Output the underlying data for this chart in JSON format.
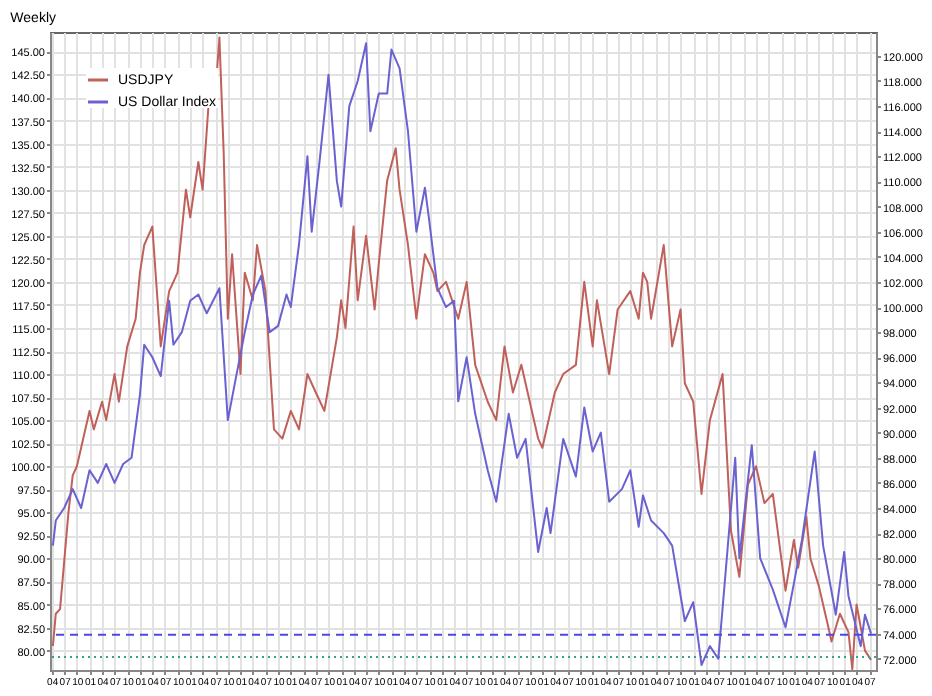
{
  "chart_data": {
    "type": "line",
    "title": "Weekly",
    "legend": "top left",
    "grid": true,
    "xlim": [
      "1995-03-20",
      "2011-08-20"
    ],
    "xticks": [
      {
        "value": "1995-04-01",
        "label": "04"
      },
      {
        "value": "1995-07-01",
        "label": "07"
      },
      {
        "value": "1995-10-01",
        "label": "10"
      },
      {
        "value": "1996-01-01",
        "label": "01"
      },
      {
        "value": "1996-04-01",
        "label": "04"
      },
      {
        "value": "1996-07-01",
        "label": "07"
      },
      {
        "value": "1996-10-01",
        "label": "10"
      },
      {
        "value": "1997-01-01",
        "label": "01"
      },
      {
        "value": "1997-04-01",
        "label": "04"
      },
      {
        "value": "1997-07-01",
        "label": "07"
      },
      {
        "value": "1997-10-01",
        "label": "10"
      },
      {
        "value": "1998-01-01",
        "label": "01"
      },
      {
        "value": "1998-04-01",
        "label": "04"
      },
      {
        "value": "1998-07-01",
        "label": "07"
      },
      {
        "value": "1998-10-01",
        "label": "10"
      },
      {
        "value": "1999-01-01",
        "label": "01"
      },
      {
        "value": "1999-04-01",
        "label": "04"
      },
      {
        "value": "1999-07-01",
        "label": "07"
      },
      {
        "value": "1999-10-01",
        "label": "10"
      },
      {
        "value": "2000-01-01",
        "label": "01"
      },
      {
        "value": "2000-04-01",
        "label": "04"
      },
      {
        "value": "2000-07-01",
        "label": "07"
      },
      {
        "value": "2000-10-01",
        "label": "10"
      },
      {
        "value": "2001-01-01",
        "label": "01"
      },
      {
        "value": "2001-04-01",
        "label": "04"
      },
      {
        "value": "2001-07-01",
        "label": "07"
      },
      {
        "value": "2001-10-01",
        "label": "10"
      },
      {
        "value": "2002-01-01",
        "label": "01"
      },
      {
        "value": "2002-04-01",
        "label": "04"
      },
      {
        "value": "2002-07-01",
        "label": "07"
      },
      {
        "value": "2002-10-01",
        "label": "10"
      },
      {
        "value": "2003-01-01",
        "label": "01"
      },
      {
        "value": "2003-04-01",
        "label": "04"
      },
      {
        "value": "2003-07-01",
        "label": "07"
      },
      {
        "value": "2003-10-01",
        "label": "10"
      },
      {
        "value": "2004-01-01",
        "label": "01"
      },
      {
        "value": "2004-04-01",
        "label": "04"
      },
      {
        "value": "2004-07-01",
        "label": "07"
      },
      {
        "value": "2004-10-01",
        "label": "10"
      },
      {
        "value": "2005-01-01",
        "label": "01"
      },
      {
        "value": "2005-04-01",
        "label": "04"
      },
      {
        "value": "2005-07-01",
        "label": "07"
      },
      {
        "value": "2005-10-01",
        "label": "10"
      },
      {
        "value": "2006-01-01",
        "label": "01"
      },
      {
        "value": "2006-04-01",
        "label": "04"
      },
      {
        "value": "2006-07-01",
        "label": "07"
      },
      {
        "value": "2006-10-01",
        "label": "10"
      },
      {
        "value": "2007-01-01",
        "label": "01"
      },
      {
        "value": "2007-04-01",
        "label": "04"
      },
      {
        "value": "2007-07-01",
        "label": "07"
      },
      {
        "value": "2007-10-01",
        "label": "10"
      },
      {
        "value": "2008-01-01",
        "label": "01"
      },
      {
        "value": "2008-04-01",
        "label": "04"
      },
      {
        "value": "2008-07-01",
        "label": "07"
      },
      {
        "value": "2008-10-01",
        "label": "10"
      },
      {
        "value": "2009-01-01",
        "label": "01"
      },
      {
        "value": "2009-04-01",
        "label": "04"
      },
      {
        "value": "2009-07-01",
        "label": "07"
      },
      {
        "value": "2009-10-01",
        "label": "10"
      },
      {
        "value": "2010-01-01",
        "label": "01"
      },
      {
        "value": "2010-04-01",
        "label": "04"
      },
      {
        "value": "2010-07-01",
        "label": "07"
      },
      {
        "value": "2010-10-01",
        "label": "10"
      },
      {
        "value": "2011-01-01",
        "label": "01"
      },
      {
        "value": "2011-04-01",
        "label": "04"
      },
      {
        "value": "2011-07-01",
        "label": "07"
      }
    ],
    "ylim": [
      77.9,
      147.1
    ],
    "yticks": [
      {
        "value": 80,
        "label": "80.00"
      },
      {
        "value": 82.5,
        "label": "82.50"
      },
      {
        "value": 85,
        "label": "85.00"
      },
      {
        "value": 87.5,
        "label": "87.50"
      },
      {
        "value": 90,
        "label": "90.00"
      },
      {
        "value": 92.5,
        "label": "92.50"
      },
      {
        "value": 95,
        "label": "95.00"
      },
      {
        "value": 97.5,
        "label": "97.50"
      },
      {
        "value": 100,
        "label": "100.00"
      },
      {
        "value": 102.5,
        "label": "102.50"
      },
      {
        "value": 105,
        "label": "105.00"
      },
      {
        "value": 107.5,
        "label": "107.50"
      },
      {
        "value": 110,
        "label": "110.00"
      },
      {
        "value": 112.5,
        "label": "112.50"
      },
      {
        "value": 115,
        "label": "115.00"
      },
      {
        "value": 117.5,
        "label": "117.50"
      },
      {
        "value": 120,
        "label": "120.00"
      },
      {
        "value": 122.5,
        "label": "122.50"
      },
      {
        "value": 125,
        "label": "125.00"
      },
      {
        "value": 127.5,
        "label": "127.50"
      },
      {
        "value": 130,
        "label": "130.00"
      },
      {
        "value": 132.5,
        "label": "132.50"
      },
      {
        "value": 135,
        "label": "135.00"
      },
      {
        "value": 137.5,
        "label": "137.50"
      },
      {
        "value": 140,
        "label": "140.00"
      },
      {
        "value": 142.5,
        "label": "142.50"
      },
      {
        "value": 145,
        "label": "145.00"
      }
    ],
    "y2lim": [
      71.1,
      121.9
    ],
    "y2ticks": [
      {
        "value": 72,
        "label": "72.000"
      },
      {
        "value": 74,
        "label": "74.000"
      },
      {
        "value": 76,
        "label": "76.000"
      },
      {
        "value": 78,
        "label": "78.000"
      },
      {
        "value": 80,
        "label": "80.000"
      },
      {
        "value": 82,
        "label": "82.000"
      },
      {
        "value": 84,
        "label": "84.000"
      },
      {
        "value": 86,
        "label": "86.000"
      },
      {
        "value": 88,
        "label": "88.000"
      },
      {
        "value": 90,
        "label": "90.000"
      },
      {
        "value": 92,
        "label": "92.000"
      },
      {
        "value": 94,
        "label": "94.000"
      },
      {
        "value": 96,
        "label": "96.000"
      },
      {
        "value": 98,
        "label": "98.000"
      },
      {
        "value": 100,
        "label": "100.000"
      },
      {
        "value": 102,
        "label": "102.000"
      },
      {
        "value": 104,
        "label": "104.000"
      },
      {
        "value": 106,
        "label": "106.000"
      },
      {
        "value": 108,
        "label": "108.000"
      },
      {
        "value": 110,
        "label": "110.000"
      },
      {
        "value": 112,
        "label": "112.000"
      },
      {
        "value": 114,
        "label": "114.000"
      },
      {
        "value": 116,
        "label": "116.000"
      },
      {
        "value": 118,
        "label": "118.000"
      },
      {
        "value": 120,
        "label": "120.000"
      }
    ],
    "ref_lines": [
      {
        "axis": "y2",
        "value": 73.9,
        "color": "#4a4ae0",
        "line_style": "dashed"
      },
      {
        "axis": "y",
        "value": 79.3,
        "color": "#3aa08a",
        "line_style": "dotted"
      }
    ],
    "series": [
      {
        "name": "USDJPY",
        "color": "#c0605a",
        "x": [
          "1995-04-10",
          "1995-05",
          "1995-06",
          "1995-08",
          "1995-09",
          "1995-10",
          "1995-11",
          "1996-01",
          "1996-02",
          "1996-04",
          "1996-05",
          "1996-07",
          "1996-08",
          "1996-10",
          "1996-12",
          "1997-01",
          "1997-02",
          "1997-04",
          "1997-06",
          "1997-08",
          "1997-09",
          "1997-10",
          "1997-12",
          "1998-01",
          "1998-03",
          "1998-04",
          "1998-06",
          "1998-07",
          "1998-08",
          "1998-09",
          "1998-10",
          "1998-11",
          "1999-01",
          "1999-02",
          "1999-04",
          "1999-05",
          "1999-07",
          "1999-09",
          "1999-11",
          "2000-01",
          "2000-03",
          "2000-05",
          "2000-07",
          "2000-09",
          "2000-12",
          "2001-01",
          "2001-02",
          "2001-04",
          "2001-05",
          "2001-07",
          "2001-09",
          "2001-10",
          "2001-12",
          "2002-02",
          "2002-03",
          "2002-05",
          "2002-07",
          "2002-09",
          "2002-11",
          "2002-12",
          "2003-02",
          "2003-05",
          "2003-07",
          "2003-09",
          "2003-12",
          "2004-02",
          "2004-04",
          "2004-06",
          "2004-08",
          "2004-12",
          "2005-01",
          "2005-04",
          "2005-06",
          "2005-09",
          "2005-11",
          "2006-01",
          "2006-02",
          "2006-05",
          "2006-07",
          "2006-10",
          "2006-12",
          "2007-01",
          "2007-02",
          "2007-03",
          "2007-06",
          "2007-08",
          "2007-10",
          "2007-11",
          "2008-01",
          "2008-03",
          "2008-05",
          "2008-08",
          "2008-10",
          "2008-12",
          "2009-02",
          "2009-04",
          "2009-06",
          "2009-08",
          "2009-11",
          "2010-01",
          "2010-02",
          "2010-04",
          "2010-05",
          "2010-07",
          "2010-09",
          "2010-10",
          "2010-12",
          "2011-02",
          "2011-03",
          "2011-04",
          "2011-06",
          "2011-07-15"
        ],
        "values": [
          80.5,
          84,
          84.5,
          95,
          99,
          100,
          102,
          106,
          104,
          107,
          105,
          110,
          107,
          113,
          116,
          121,
          124,
          126,
          113,
          119,
          120,
          121,
          130,
          127,
          133,
          130,
          143,
          140,
          146.5,
          134,
          116,
          123,
          110,
          121,
          118,
          124,
          119,
          104,
          103,
          106,
          104,
          110,
          108,
          106,
          114,
          118,
          115,
          126,
          118,
          125,
          117,
          122,
          131,
          134.5,
          130,
          124,
          116,
          123,
          121,
          119,
          120,
          116,
          120,
          111,
          107,
          105,
          113,
          108,
          111,
          103,
          102,
          108,
          110,
          111,
          120,
          113,
          118,
          110,
          117,
          119,
          116,
          121,
          120,
          116,
          124,
          113,
          117,
          109,
          107,
          97,
          105,
          110,
          93,
          88,
          98,
          100,
          96,
          97,
          86.5,
          92,
          89,
          94.5,
          90,
          87,
          83,
          81,
          84,
          82,
          78,
          85,
          80,
          79
        ]
      },
      {
        "name": "US Dollar Index",
        "color": "#6a62d0",
        "axis": "y2",
        "x": [
          "1995-04-10",
          "1995-05",
          "1995-07",
          "1995-09",
          "1995-11",
          "1996-01",
          "1996-03",
          "1996-05",
          "1996-07",
          "1996-09",
          "1996-11",
          "1997-01",
          "1997-02",
          "1997-04",
          "1997-06",
          "1997-08",
          "1997-09",
          "1997-11",
          "1998-01",
          "1998-03",
          "1998-05",
          "1998-08",
          "1998-10",
          "1998-12",
          "1999-02",
          "1999-04",
          "1999-06",
          "1999-08",
          "1999-10",
          "1999-12",
          "2000-01",
          "2000-03",
          "2000-05",
          "2000-06",
          "2000-08",
          "2000-10",
          "2000-12",
          "2001-01",
          "2001-03",
          "2001-05",
          "2001-07",
          "2001-08",
          "2001-10",
          "2001-12",
          "2002-01",
          "2002-03",
          "2002-05",
          "2002-07",
          "2002-09",
          "2002-10",
          "2002-12",
          "2003-02",
          "2003-04",
          "2003-05",
          "2003-07",
          "2003-09",
          "2003-12",
          "2004-02",
          "2004-05",
          "2004-07",
          "2004-09",
          "2004-12",
          "2005-02",
          "2005-03",
          "2005-06",
          "2005-09",
          "2005-11",
          "2006-01",
          "2006-03",
          "2006-05",
          "2006-08",
          "2006-10",
          "2006-12",
          "2007-01",
          "2007-03",
          "2007-06",
          "2007-08",
          "2007-11",
          "2008-01",
          "2008-03",
          "2008-05",
          "2008-07",
          "2008-08",
          "2008-11",
          "2008-12",
          "2009-03",
          "2009-05",
          "2009-08",
          "2009-11",
          "2010-01",
          "2010-03",
          "2010-06",
          "2010-08",
          "2010-11",
          "2011-01",
          "2011-02",
          "2011-05",
          "2011-06",
          "2011-07-15"
        ],
        "values": [
          81,
          83,
          84,
          85.5,
          84,
          87,
          86,
          87.5,
          86,
          87.5,
          88,
          93,
          97,
          96,
          94.5,
          100.5,
          97,
          98,
          100.5,
          101,
          99.5,
          101.5,
          91,
          94.5,
          98,
          101,
          102.5,
          98,
          98.5,
          101,
          100,
          105,
          112,
          106,
          112,
          118.5,
          110,
          108,
          116,
          118,
          121,
          114,
          117,
          117,
          120.5,
          119,
          114,
          106,
          109.5,
          107,
          101.5,
          100,
          100.5,
          92.5,
          96,
          91.5,
          87,
          84.5,
          91.5,
          88,
          89.5,
          80.5,
          84,
          82,
          89.5,
          86.5,
          92,
          88.5,
          90,
          84.5,
          85.5,
          87,
          82.5,
          85,
          83,
          82,
          81,
          75,
          76.5,
          71.5,
          73,
          72,
          76,
          88,
          80,
          89,
          80,
          77.5,
          74.5,
          78,
          81.5,
          88.5,
          81,
          75.5,
          80.5,
          77,
          73,
          75.5,
          74
        ]
      }
    ]
  }
}
